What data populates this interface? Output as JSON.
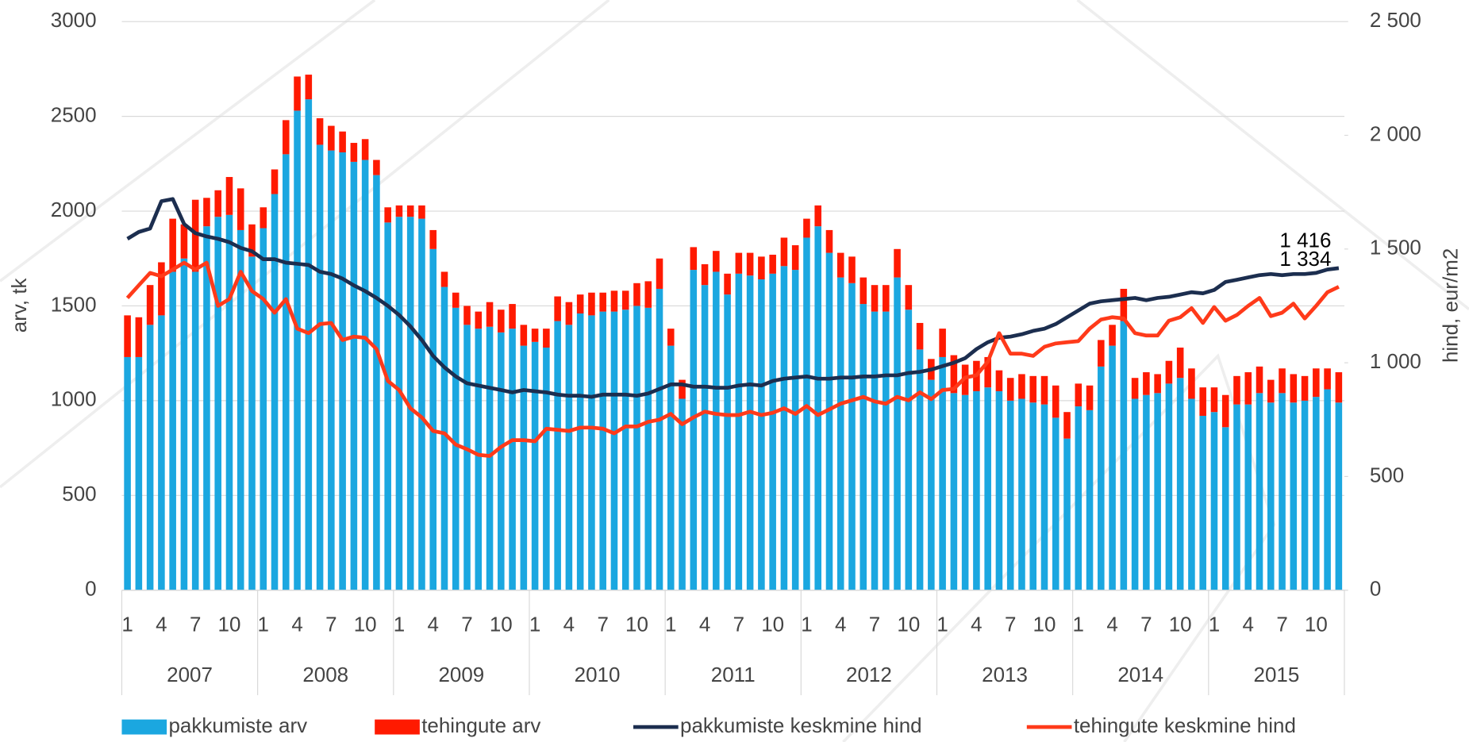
{
  "chart_data": {
    "type": "bar",
    "stacked": true,
    "ylabel": "arv, tk",
    "y2label": "hind, eur/m2",
    "ylim": [
      0,
      3000
    ],
    "yticks": [
      0,
      500,
      1000,
      1500,
      2000,
      2500,
      3000
    ],
    "y2lim": [
      0,
      2500
    ],
    "y2ticks": [
      0,
      500,
      {
        "value": 1000,
        "label": "1 000"
      },
      {
        "value": 1500,
        "label": "1 500"
      },
      {
        "value": 2000,
        "label": "2 000"
      },
      {
        "value": 2500,
        "label": "2 500"
      }
    ],
    "grid": true,
    "legend": "bottom",
    "categories": [
      "1",
      null,
      null,
      "4",
      null,
      null,
      "7",
      null,
      null,
      "10",
      null,
      null,
      "1",
      null,
      null,
      "4",
      null,
      null,
      "7",
      null,
      null,
      "10",
      null,
      null,
      "1",
      null,
      null,
      "4",
      null,
      null,
      "7",
      null,
      null,
      "10",
      null,
      null,
      "1",
      null,
      null,
      "4",
      null,
      null,
      "7",
      null,
      null,
      "10",
      null,
      null,
      "1",
      null,
      null,
      "4",
      null,
      null,
      "7",
      null,
      null,
      "10",
      null,
      null,
      "1",
      null,
      null,
      "4",
      null,
      null,
      "7",
      null,
      null,
      "10",
      null,
      null,
      "1",
      null,
      null,
      "4",
      null,
      null,
      "7",
      null,
      null,
      "10",
      null,
      null,
      "1",
      null,
      null,
      "4",
      null,
      null,
      "7",
      null,
      null,
      "10",
      null,
      null,
      "1",
      null,
      null,
      "4",
      null,
      null,
      "7",
      null,
      null,
      "10",
      null,
      null
    ],
    "groups": [
      "2007",
      "2008",
      "2009",
      "2010",
      "2011",
      "2012",
      "2013",
      "2014",
      "2015"
    ],
    "series": [
      {
        "name": "pakkumiste arv",
        "type": "bar",
        "color": "#1ba7e0",
        "values": [
          1230,
          1230,
          1400,
          1450,
          1680,
          1750,
          1680,
          1920,
          1970,
          1980,
          1900,
          1760,
          1910,
          2090,
          2300,
          2530,
          2590,
          2350,
          2320,
          2310,
          2260,
          2270,
          2190,
          1940,
          1970,
          1970,
          1960,
          1800,
          1600,
          1490,
          1400,
          1380,
          1390,
          1360,
          1380,
          1290,
          1310,
          1280,
          1420,
          1400,
          1460,
          1450,
          1470,
          1470,
          1480,
          1500,
          1490,
          1590,
          1290,
          1010,
          1690,
          1610,
          1680,
          1560,
          1670,
          1660,
          1640,
          1670,
          1710,
          1690,
          1860,
          1920,
          1780,
          1650,
          1620,
          1510,
          1470,
          1470,
          1650,
          1480,
          1270,
          1110,
          1230,
          1040,
          1030,
          1050,
          1070,
          1050,
          1000,
          1010,
          990,
          980,
          910,
          800,
          970,
          950,
          1180,
          1290,
          1420,
          1010,
          1030,
          1040,
          1090,
          1120,
          1010,
          920,
          940,
          860,
          980,
          980,
          1040,
          990,
          1040,
          990,
          1000,
          1020,
          1060,
          990
        ]
      },
      {
        "name": "tehingute arv",
        "type": "bar",
        "color": "#ff1a00",
        "values": [
          220,
          210,
          210,
          280,
          280,
          180,
          380,
          150,
          140,
          200,
          220,
          170,
          110,
          130,
          180,
          180,
          130,
          140,
          130,
          110,
          100,
          110,
          80,
          80,
          60,
          60,
          70,
          100,
          80,
          80,
          100,
          90,
          130,
          120,
          130,
          110,
          70,
          100,
          130,
          120,
          100,
          120,
          100,
          110,
          100,
          120,
          140,
          160,
          90,
          100,
          120,
          110,
          110,
          110,
          110,
          120,
          120,
          100,
          150,
          130,
          100,
          110,
          120,
          130,
          140,
          140,
          140,
          140,
          150,
          130,
          140,
          110,
          150,
          200,
          160,
          160,
          160,
          110,
          120,
          130,
          140,
          150,
          170,
          140,
          120,
          130,
          140,
          110,
          170,
          110,
          120,
          100,
          120,
          160,
          160,
          150,
          130,
          170,
          150,
          170,
          140,
          120,
          130,
          150,
          130,
          150,
          110,
          160
        ]
      },
      {
        "name": "pakkumiste keskmine hind",
        "type": "line",
        "axis": "y2",
        "color": "#1c2e4f",
        "values": [
          1545,
          1575,
          1590,
          1710,
          1720,
          1610,
          1570,
          1555,
          1545,
          1530,
          1505,
          1490,
          1455,
          1455,
          1440,
          1435,
          1430,
          1400,
          1390,
          1370,
          1340,
          1315,
          1285,
          1250,
          1210,
          1160,
          1100,
          1030,
          980,
          940,
          910,
          900,
          890,
          880,
          870,
          880,
          875,
          870,
          860,
          855,
          855,
          850,
          860,
          860,
          860,
          855,
          865,
          885,
          905,
          905,
          895,
          895,
          890,
          890,
          900,
          905,
          900,
          920,
          930,
          935,
          940,
          930,
          930,
          935,
          935,
          940,
          940,
          945,
          945,
          955,
          960,
          970,
          985,
          1000,
          1020,
          1060,
          1090,
          1110,
          1115,
          1125,
          1140,
          1150,
          1170,
          1200,
          1230,
          1260,
          1270,
          1275,
          1280,
          1285,
          1275,
          1285,
          1290,
          1300,
          1310,
          1305,
          1320,
          1355,
          1365,
          1375,
          1385,
          1390,
          1385,
          1390,
          1390,
          1395,
          1410,
          1416
        ],
        "value_labels": [
          null,
          null,
          null,
          null,
          null,
          null,
          null,
          null,
          null,
          null,
          null,
          null,
          null,
          null,
          null,
          null,
          null,
          null,
          null,
          null,
          null,
          null,
          null,
          null,
          null,
          null,
          null,
          null,
          null,
          null,
          null,
          null,
          null,
          null,
          null,
          null,
          null,
          null,
          null,
          null,
          null,
          null,
          null,
          null,
          null,
          null,
          null,
          null,
          null,
          null,
          null,
          null,
          null,
          null,
          null,
          null,
          null,
          null,
          null,
          null,
          null,
          null,
          null,
          null,
          null,
          null,
          null,
          null,
          null,
          null,
          null,
          null,
          null,
          null,
          null,
          null,
          null,
          null,
          null,
          null,
          null,
          null,
          null,
          null,
          null,
          null,
          null,
          null,
          null,
          null,
          null,
          null,
          null,
          null,
          null,
          null,
          null,
          null,
          null,
          null,
          null,
          null,
          null,
          null,
          null,
          null,
          null,
          "1 416"
        ]
      },
      {
        "name": "tehingute keskmine hind",
        "type": "line",
        "axis": "y2",
        "color": "#ff3a1a",
        "values": [
          1285,
          1340,
          1395,
          1380,
          1410,
          1440,
          1410,
          1440,
          1250,
          1280,
          1400,
          1315,
          1280,
          1220,
          1280,
          1150,
          1130,
          1170,
          1175,
          1100,
          1115,
          1110,
          1060,
          920,
          880,
          800,
          760,
          700,
          690,
          640,
          620,
          595,
          590,
          630,
          660,
          660,
          655,
          710,
          705,
          700,
          715,
          715,
          710,
          690,
          720,
          720,
          740,
          750,
          775,
          730,
          760,
          785,
          775,
          770,
          770,
          785,
          770,
          780,
          800,
          775,
          810,
          770,
          795,
          820,
          835,
          850,
          830,
          820,
          850,
          835,
          870,
          840,
          880,
          885,
          935,
          945,
          1005,
          1130,
          1040,
          1040,
          1030,
          1070,
          1085,
          1090,
          1095,
          1150,
          1190,
          1200,
          1195,
          1130,
          1120,
          1120,
          1185,
          1200,
          1240,
          1175,
          1245,
          1185,
          1210,
          1250,
          1285,
          1205,
          1220,
          1260,
          1195,
          1250,
          1310,
          1334
        ],
        "value_labels": [
          null,
          null,
          null,
          null,
          null,
          null,
          null,
          null,
          null,
          null,
          null,
          null,
          null,
          null,
          null,
          null,
          null,
          null,
          null,
          null,
          null,
          null,
          null,
          null,
          null,
          null,
          null,
          null,
          null,
          null,
          null,
          null,
          null,
          null,
          null,
          null,
          null,
          null,
          null,
          null,
          null,
          null,
          null,
          null,
          null,
          null,
          null,
          null,
          null,
          null,
          null,
          null,
          null,
          null,
          null,
          null,
          null,
          null,
          null,
          null,
          null,
          null,
          null,
          null,
          null,
          null,
          null,
          null,
          null,
          null,
          null,
          null,
          null,
          null,
          null,
          null,
          null,
          null,
          null,
          null,
          null,
          null,
          null,
          null,
          null,
          null,
          null,
          null,
          null,
          null,
          null,
          null,
          null,
          null,
          null,
          null,
          null,
          null,
          null,
          null,
          null,
          null,
          null,
          null,
          null,
          null,
          null,
          "1 334"
        ]
      }
    ]
  }
}
